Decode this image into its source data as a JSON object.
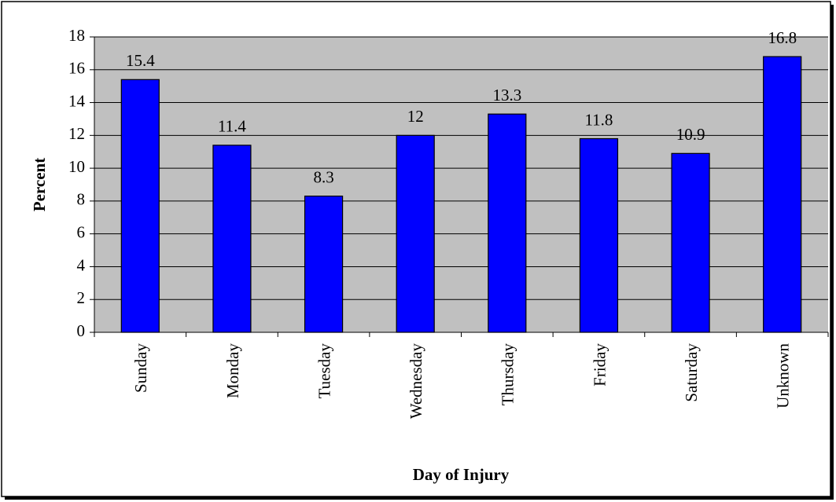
{
  "chart_data": {
    "type": "bar",
    "categories": [
      "Sunday",
      "Monday",
      "Tuesday",
      "Wednesday",
      "Thursday",
      "Friday",
      "Saturday",
      "Unknown"
    ],
    "values": [
      15.4,
      11.4,
      8.3,
      12,
      13.3,
      11.8,
      10.9,
      16.8
    ],
    "color": "#0000ff",
    "ylabel": "Percent",
    "xlabel": "Day of Injury",
    "ylim": [
      0,
      18
    ],
    "yticks": [
      0,
      2,
      4,
      6,
      8,
      10,
      12,
      14,
      16,
      18
    ],
    "grid": true
  }
}
